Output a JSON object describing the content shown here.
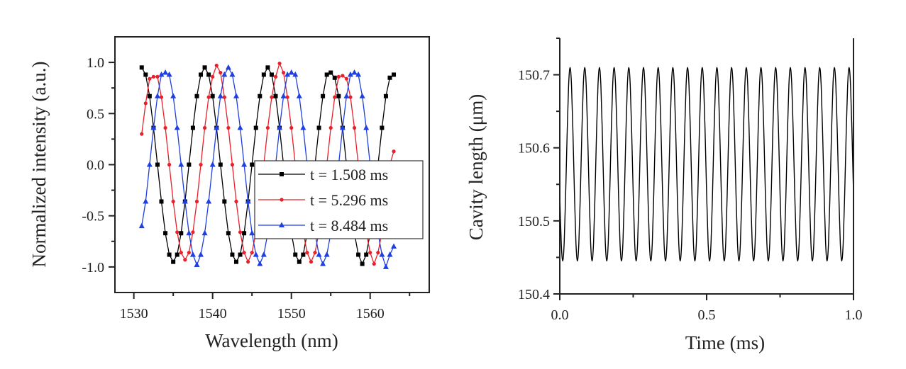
{
  "chart_data": [
    {
      "type": "line",
      "xlabel": "Wavelength (nm)",
      "ylabel": "Normalized intensity (a.u.)",
      "xlim": [
        1527.6,
        1567.5
      ],
      "ylim": [
        -1.25,
        1.25
      ],
      "xticks": [
        "1530",
        "1540",
        "1550",
        "1560"
      ],
      "yticks": [
        "1.0",
        "0.5",
        "0.0",
        "-0.5",
        "-1.0"
      ],
      "grid": false,
      "legend": "center-right",
      "x": [
        1531,
        1531.5,
        1532,
        1532.5,
        1533,
        1533.5,
        1534,
        1534.5,
        1535,
        1535.5,
        1536,
        1536.5,
        1537,
        1537.5,
        1538,
        1538.5,
        1539,
        1539.5,
        1540,
        1540.5,
        1541,
        1541.5,
        1542,
        1542.5,
        1543,
        1543.5,
        1544,
        1544.5,
        1545,
        1545.5,
        1546,
        1546.5,
        1547,
        1547.5,
        1548,
        1548.5,
        1549,
        1549.5,
        1550,
        1550.5,
        1551,
        1551.5,
        1552,
        1552.5,
        1553,
        1553.5,
        1554,
        1554.5,
        1555,
        1555.5,
        1556,
        1556.5,
        1557,
        1557.5,
        1558,
        1558.5,
        1559,
        1559.5,
        1560,
        1560.5,
        1561,
        1561.5,
        1562,
        1562.5,
        1563
      ],
      "series": [
        {
          "name": "t = 1.508 ms",
          "color": "#000000",
          "marker": "square",
          "values": [
            0.95,
            0.88,
            0.67,
            0.36,
            0,
            -0.36,
            -0.67,
            -0.88,
            -0.95,
            -0.88,
            -0.67,
            -0.36,
            0,
            0.36,
            0.67,
            0.88,
            0.95,
            0.88,
            0.67,
            0.36,
            0,
            -0.36,
            -0.67,
            -0.88,
            -0.95,
            -0.88,
            -0.67,
            -0.36,
            0,
            0.36,
            0.67,
            0.88,
            0.95,
            0.88,
            0.67,
            0.36,
            0,
            -0.36,
            -0.67,
            -0.88,
            -0.95,
            -0.88,
            -0.67,
            -0.36,
            0,
            0.36,
            0.67,
            0.88,
            0.9,
            0.85,
            0.67,
            0.36,
            0,
            -0.36,
            -0.67,
            -0.88,
            -0.97,
            -0.88,
            -0.67,
            -0.36,
            0,
            0.36,
            0.67,
            0.85,
            0.88
          ]
        },
        {
          "name": "t = 5.296 ms",
          "color": "#e8202a",
          "marker": "circle",
          "values": [
            0.3,
            0.6,
            0.84,
            0.86,
            0.86,
            0.66,
            0.36,
            0,
            -0.36,
            -0.66,
            -0.86,
            -0.93,
            -0.86,
            -0.66,
            -0.36,
            0,
            0.36,
            0.66,
            0.86,
            0.97,
            0.9,
            0.66,
            0.36,
            0,
            -0.36,
            -0.66,
            -0.86,
            -0.95,
            -0.86,
            -0.66,
            -0.36,
            0,
            0.36,
            0.66,
            0.86,
            0.99,
            0.9,
            0.66,
            0.36,
            0,
            -0.36,
            -0.66,
            -0.86,
            -0.95,
            -0.86,
            -0.66,
            -0.36,
            0,
            0.36,
            0.66,
            0.86,
            0.87,
            0.84,
            0.66,
            0.36,
            0,
            -0.36,
            -0.66,
            -0.86,
            -0.97,
            -0.86,
            -0.66,
            -0.36,
            0,
            0.13
          ]
        },
        {
          "name": "t = 8.484 ms",
          "color": "#1f3fe0",
          "marker": "triangle",
          "values": [
            -0.6,
            -0.36,
            0,
            0.36,
            0.67,
            0.88,
            0.9,
            0.88,
            0.67,
            0.36,
            0,
            -0.36,
            -0.67,
            -0.88,
            -0.98,
            -0.88,
            -0.67,
            -0.36,
            0,
            0.36,
            0.67,
            0.88,
            0.95,
            0.88,
            0.67,
            0.36,
            0,
            -0.36,
            -0.67,
            -0.88,
            -0.97,
            -0.88,
            -0.67,
            -0.36,
            0,
            0.36,
            0.67,
            0.88,
            0.9,
            0.88,
            0.67,
            0.36,
            0,
            -0.36,
            -0.67,
            -0.88,
            -0.97,
            -0.88,
            -0.67,
            -0.36,
            0,
            0.36,
            0.67,
            0.88,
            0.9,
            0.88,
            0.67,
            0.36,
            0,
            -0.36,
            -0.67,
            -0.88,
            -1.0,
            -0.88,
            -0.8
          ]
        }
      ]
    },
    {
      "type": "line",
      "xlabel": "Time (ms)",
      "ylabel": "Cavity length (μm)",
      "xlim": [
        0,
        1.0
      ],
      "ylim": [
        150.4,
        150.75
      ],
      "xticks": [
        "0.0",
        "0.5",
        "1.0"
      ],
      "yticks": [
        "150.7",
        "150.6",
        "150.5",
        "150.4"
      ],
      "grid": false,
      "t_range": [
        0,
        1.0
      ],
      "series": [
        {
          "color": "#000000",
          "values": [
            150.537,
            150.47,
            150.445,
            150.47,
            150.537,
            150.618,
            150.685,
            150.71,
            150.685,
            150.618,
            150.537,
            150.47,
            150.445,
            150.47,
            150.537,
            150.618,
            150.685,
            150.71,
            150.685,
            150.618,
            150.537,
            150.47,
            150.445,
            150.47,
            150.537,
            150.618,
            150.685,
            150.71,
            150.685,
            150.618,
            150.537,
            150.47,
            150.445,
            150.47,
            150.537,
            150.618,
            150.685,
            150.71,
            150.685,
            150.618,
            150.537,
            150.47,
            150.445,
            150.47,
            150.537,
            150.618,
            150.685,
            150.71,
            150.685,
            150.618,
            150.537,
            150.47,
            150.445,
            150.47,
            150.537,
            150.618,
            150.685,
            150.71,
            150.685,
            150.618,
            150.537,
            150.47,
            150.445,
            150.47,
            150.537,
            150.618,
            150.685,
            150.71,
            150.685,
            150.618,
            150.537,
            150.47,
            150.445,
            150.47,
            150.537,
            150.618,
            150.685,
            150.71,
            150.685,
            150.618,
            150.537,
            150.47,
            150.445,
            150.47,
            150.537,
            150.618,
            150.685,
            150.71,
            150.685,
            150.618,
            150.537,
            150.47,
            150.445,
            150.47,
            150.537,
            150.618,
            150.685,
            150.71,
            150.685,
            150.618,
            150.537,
            150.47,
            150.445,
            150.47,
            150.537,
            150.618,
            150.685,
            150.71,
            150.685,
            150.618,
            150.537,
            150.47,
            150.445,
            150.47,
            150.537,
            150.618,
            150.685,
            150.71,
            150.685,
            150.618,
            150.537,
            150.47,
            150.445,
            150.47,
            150.537,
            150.618,
            150.685,
            150.71,
            150.685,
            150.618,
            150.537,
            150.47,
            150.445,
            150.47,
            150.537,
            150.618,
            150.685,
            150.71,
            150.685,
            150.618,
            150.537,
            150.47,
            150.445,
            150.47,
            150.537,
            150.618,
            150.685,
            150.71,
            150.685,
            150.618,
            150.537,
            150.47,
            150.445,
            150.47,
            150.537,
            150.618,
            150.685,
            150.71,
            150.685,
            150.618,
            150.537,
            150.47,
            150.445,
            150.47,
            150.537,
            150.618,
            150.685,
            150.71,
            150.685,
            150.618,
            150.537,
            150.47,
            150.445,
            150.47,
            150.537,
            150.618,
            150.685,
            150.71,
            150.685,
            150.618,
            150.537,
            150.47,
            150.445,
            150.47,
            150.537,
            150.618,
            150.685,
            150.71,
            150.685,
            150.618,
            150.537,
            150.47,
            150.445,
            150.47,
            150.537,
            150.618,
            150.685,
            150.71,
            150.685,
            150.618,
            150.537
          ]
        }
      ]
    }
  ]
}
